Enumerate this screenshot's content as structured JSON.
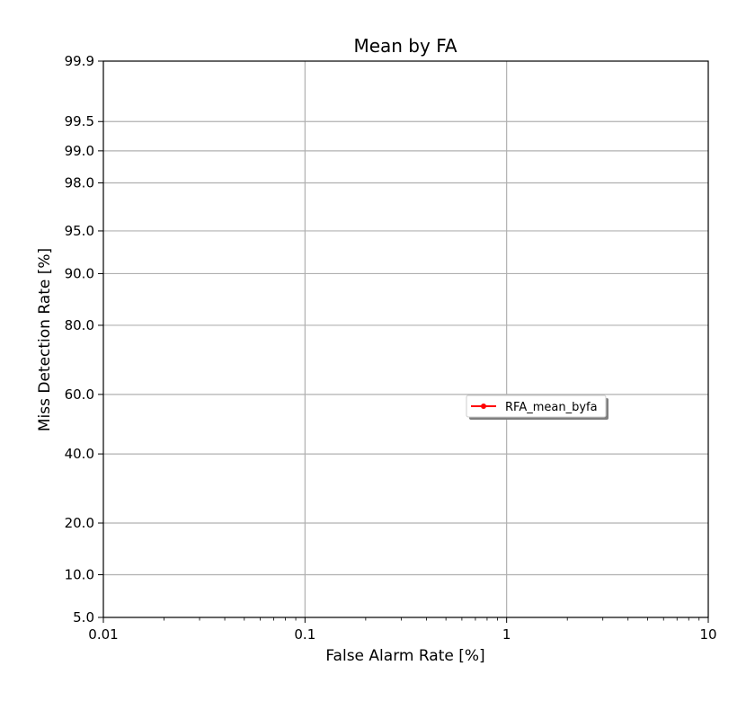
{
  "chart_data": {
    "type": "line",
    "title": "Mean by FA",
    "xlabel": "False Alarm Rate [%]",
    "ylabel": "Miss Detection Rate [%]",
    "x_scale": "log",
    "y_scale": "normal-deviate (probit)",
    "xlim": [
      0.01,
      10
    ],
    "ylim": [
      5.0,
      99.9
    ],
    "x_ticks": [
      0.01,
      0.1,
      1,
      10
    ],
    "x_tick_labels": [
      "0.01",
      "0.1",
      "1",
      "10"
    ],
    "y_ticks": [
      5.0,
      10.0,
      20.0,
      40.0,
      60.0,
      80.0,
      90.0,
      95.0,
      98.0,
      99.0,
      99.5,
      99.9
    ],
    "y_tick_labels": [
      "5.0",
      "10.0",
      "20.0",
      "40.0",
      "60.0",
      "80.0",
      "90.0",
      "95.0",
      "98.0",
      "99.0",
      "99.5",
      "99.9"
    ],
    "grid": true,
    "legend_position": "center-right",
    "series": [
      {
        "name": "RFA_mean_byfa",
        "color": "#ff0000",
        "marker": "dot",
        "x": [],
        "y": []
      }
    ]
  }
}
